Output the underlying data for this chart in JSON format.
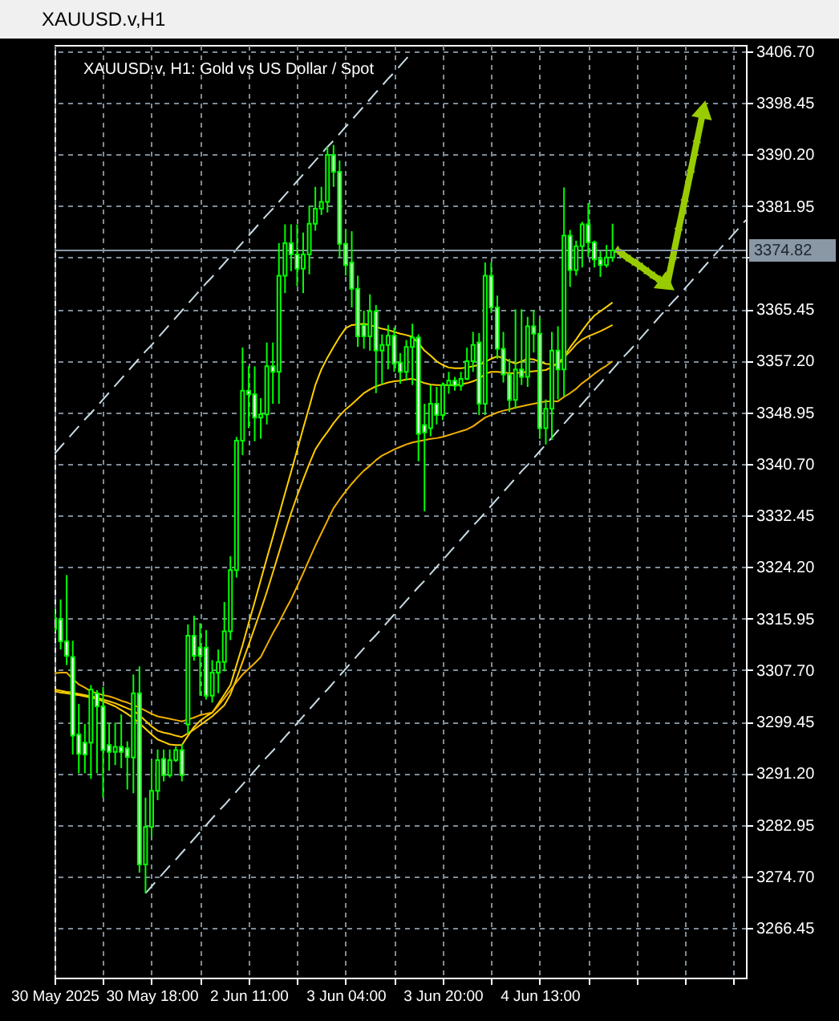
{
  "chart_data": {
    "type": "candlestick",
    "title": "XAUUSD.v,H1",
    "subtitle": "XAUUSD.v, H1: Gold vs US Dollar / Spot",
    "categories": [
      "30 May 2025",
      null,
      null,
      null,
      null,
      null,
      null,
      null,
      null,
      null,
      null,
      null,
      null,
      null,
      null,
      null,
      "30 May 18:00",
      null,
      null,
      null,
      null,
      null,
      null,
      null,
      null,
      null,
      null,
      null,
      null,
      null,
      null,
      null,
      "2 Jun 11:00",
      null,
      null,
      null,
      null,
      null,
      null,
      null,
      null,
      null,
      null,
      null,
      null,
      null,
      null,
      null,
      "3 Jun 04:00",
      null,
      null,
      null,
      null,
      null,
      null,
      null,
      null,
      null,
      null,
      null,
      null,
      null,
      null,
      null,
      "3 Jun 20:00",
      null,
      null,
      null,
      null,
      null,
      null,
      null,
      null,
      null,
      null,
      null,
      null,
      null,
      null,
      null,
      "4 Jun 13:00",
      null,
      null,
      null,
      null,
      null,
      null,
      null,
      null,
      null,
      null,
      null,
      null,
      null,
      null,
      null,
      null,
      null,
      null,
      null,
      null,
      null,
      null,
      null,
      null,
      null,
      null,
      null,
      null,
      null,
      null,
      null,
      null,
      null,
      null
    ],
    "ohlc": [
      [
        3316.0,
        3317.5,
        3313.8,
        3314.3
      ],
      [
        3315.8,
        3319.0,
        3311.0,
        3312.3
      ],
      [
        3312.3,
        3322.9,
        3308.5,
        3310.0
      ],
      [
        3309.8,
        3312.4,
        3294.2,
        3297.2
      ],
      [
        3297.4,
        3302.3,
        3291.2,
        3294.3
      ],
      [
        3296.1,
        3299.1,
        3291.2,
        3294.2
      ],
      [
        3296.1,
        3305.3,
        3290.3,
        3304.6
      ],
      [
        3304.0,
        3304.5,
        3291.2,
        3301.9
      ],
      [
        3301.9,
        3305.0,
        3287.3,
        3294.9
      ],
      [
        3295.7,
        3299.3,
        3291.6,
        3294.6
      ],
      [
        3294.6,
        3299.3,
        3292.5,
        3295.4
      ],
      [
        3295.4,
        3300.6,
        3292.0,
        3294.6
      ],
      [
        3295.2,
        3296.3,
        3288.6,
        3293.8
      ],
      [
        3293.7,
        3307.0,
        3288.0,
        3304.0
      ],
      [
        3304.0,
        3308.3,
        3275.3,
        3276.6
      ],
      [
        3276.6,
        3287.3,
        3272.0,
        3282.6
      ],
      [
        3282.6,
        3293.3,
        3281.0,
        3288.4
      ],
      [
        3288.4,
        3295.0,
        3286.9,
        3293.3
      ],
      [
        3293.5,
        3295.0,
        3289.9,
        3290.9
      ],
      [
        3290.9,
        3295.0,
        3290.5,
        3293.3
      ],
      [
        3293.3,
        3295.5,
        3293.0,
        3294.9
      ],
      [
        3294.9,
        3295.9,
        3289.9,
        3290.9
      ],
      [
        3299.0,
        3315.0,
        3297.5,
        3313.2
      ],
      [
        3313.2,
        3316.4,
        3309.2,
        3310.0
      ],
      [
        3311.3,
        3315.2,
        3303.6,
        3310.0
      ],
      [
        3311.3,
        3314.1,
        3303.0,
        3303.6
      ],
      [
        3303.6,
        3309.3,
        3302.5,
        3307.3
      ],
      [
        3307.3,
        3311.0,
        3304.0,
        3309.0
      ],
      [
        3309.0,
        3318.6,
        3307.5,
        3313.9
      ],
      [
        3313.9,
        3325.9,
        3312.5,
        3323.7
      ],
      [
        3323.7,
        3345.0,
        3322.5,
        3344.4
      ],
      [
        3344.4,
        3359.3,
        3342.1,
        3352.4
      ],
      [
        3352.4,
        3356.3,
        3346.4,
        3351.8
      ],
      [
        3351.8,
        3356.3,
        3344.3,
        3348.1
      ],
      [
        3348.1,
        3351.2,
        3344.7,
        3348.6
      ],
      [
        3348.6,
        3360.1,
        3347.0,
        3356.3
      ],
      [
        3356.3,
        3360.1,
        3350.3,
        3355.4
      ],
      [
        3355.4,
        3376.0,
        3350.3,
        3370.8
      ],
      [
        3370.8,
        3379.0,
        3368.0,
        3376.0
      ],
      [
        3376.0,
        3379.0,
        3371.5,
        3374.2
      ],
      [
        3374.2,
        3379.0,
        3369.1,
        3371.9
      ],
      [
        3371.9,
        3377.7,
        3368.0,
        3374.2
      ],
      [
        3374.2,
        3382.0,
        3371.0,
        3379.1
      ],
      [
        3379.1,
        3385.0,
        3378.0,
        3381.5
      ],
      [
        3381.5,
        3385.0,
        3380.5,
        3382.6
      ],
      [
        3382.6,
        3391.4,
        3380.9,
        3390.1
      ],
      [
        3390.1,
        3391.7,
        3385.0,
        3387.4
      ],
      [
        3387.4,
        3389.2,
        3373.8,
        3375.9
      ],
      [
        3375.9,
        3378.1,
        3370.8,
        3372.5
      ],
      [
        3372.9,
        3377.9,
        3365.7,
        3368.7
      ],
      [
        3368.7,
        3370.8,
        3359.4,
        3361.1
      ],
      [
        3362.9,
        3365.2,
        3359.1,
        3361.1
      ],
      [
        3361.1,
        3367.8,
        3358.8,
        3365.1
      ],
      [
        3365.1,
        3366.1,
        3352.0,
        3358.8
      ],
      [
        3358.8,
        3361.4,
        3353.4,
        3359.7
      ],
      [
        3359.7,
        3362.9,
        3355.8,
        3361.2
      ],
      [
        3361.2,
        3362.5,
        3355.4,
        3356.7
      ],
      [
        3356.9,
        3358.4,
        3353.5,
        3355.4
      ],
      [
        3355.4,
        3360.5,
        3354.0,
        3359.4
      ],
      [
        3359.4,
        3363.1,
        3353.3,
        3360.9
      ],
      [
        3360.9,
        3361.4,
        3341.1,
        3345.5
      ],
      [
        3346.9,
        3350.3,
        3333.1,
        3345.7
      ],
      [
        3346.4,
        3353.3,
        3345.1,
        3350.3
      ],
      [
        3350.3,
        3353.0,
        3347.0,
        3348.5
      ],
      [
        3348.5,
        3353.7,
        3347.7,
        3353.3
      ],
      [
        3353.3,
        3355.4,
        3351.9,
        3354.0
      ],
      [
        3354.0,
        3354.6,
        3352.4,
        3353.2
      ],
      [
        3353.2,
        3355.4,
        3352.4,
        3354.3
      ],
      [
        3354.3,
        3359.3,
        3354.1,
        3357.1
      ],
      [
        3357.1,
        3361.8,
        3355.4,
        3359.7
      ],
      [
        3360.1,
        3361.6,
        3348.5,
        3350.3
      ],
      [
        3350.3,
        3372.9,
        3348.5,
        3370.8
      ],
      [
        3370.8,
        3372.9,
        3364.8,
        3365.7
      ],
      [
        3365.7,
        3367.6,
        3357.5,
        3359.1
      ],
      [
        3359.1,
        3361.8,
        3353.7,
        3355.0
      ],
      [
        3355.0,
        3357.5,
        3349.0,
        3350.9
      ],
      [
        3350.9,
        3365.4,
        3349.5,
        3355.8
      ],
      [
        3355.8,
        3365.4,
        3353.3,
        3354.6
      ],
      [
        3354.6,
        3364.2,
        3353.0,
        3362.7
      ],
      [
        3362.7,
        3365.3,
        3358.5,
        3361.5
      ],
      [
        3361.5,
        3364.0,
        3344.7,
        3346.4
      ],
      [
        3346.4,
        3351.0,
        3343.8,
        3349.5
      ],
      [
        3349.5,
        3361.8,
        3344.5,
        3358.8
      ],
      [
        3358.8,
        3362.7,
        3351.0,
        3355.8
      ],
      [
        3355.8,
        3384.9,
        3351.5,
        3377.2
      ],
      [
        3377.2,
        3378.1,
        3369.0,
        3371.7
      ],
      [
        3371.7,
        3376.4,
        3370.8,
        3375.5
      ],
      [
        3375.5,
        3379.4,
        3372.1,
        3379.0
      ],
      [
        3379.0,
        3382.4,
        3373.8,
        3376.1
      ],
      [
        3376.1,
        3376.4,
        3372.1,
        3373.4
      ],
      [
        3373.4,
        3374.7,
        3370.6,
        3372.5
      ],
      [
        3372.5,
        3375.7,
        3372.1,
        3373.7
      ],
      [
        3373.7,
        3379.1,
        3373.0,
        3374.82
      ],
      null,
      null,
      null,
      null,
      null,
      null,
      null,
      null,
      null,
      null,
      null,
      null,
      null,
      null,
      null,
      null,
      null,
      null,
      null,
      null,
      null,
      null
    ],
    "color": "#00ff00",
    "colors": [
      "#ffffff",
      "#ffffff",
      "#ffffff",
      "#ffffff",
      "#ffffff",
      "#ffffff",
      "#000000",
      "#ffffff",
      "#ffffff",
      "#ffffff",
      "#000000",
      "#ffffff",
      "#ffffff",
      "#000000",
      "#ffffff",
      "#000000",
      "#000000",
      "#000000",
      "#ffffff",
      "#000000",
      "#000000",
      "#ffffff",
      "#000000",
      "#ffffff",
      "#ffffff",
      "#ffffff",
      "#000000",
      "#000000",
      "#000000",
      "#000000",
      "#000000",
      "#000000",
      "#ffffff",
      "#ffffff",
      "#000000",
      "#000000",
      "#ffffff",
      "#000000",
      "#000000",
      "#ffffff",
      "#ffffff",
      "#000000",
      "#000000",
      "#000000",
      "#000000",
      "#000000",
      "#ffffff",
      "#ffffff",
      "#ffffff",
      "#ffffff",
      "#ffffff",
      "#ffffff",
      "#000000",
      "#ffffff",
      "#000000",
      "#000000",
      "#ffffff",
      "#ffffff",
      "#000000",
      "#000000",
      "#ffffff",
      "#ffffff",
      "#000000",
      "#ffffff",
      "#000000",
      "#000000",
      "#ffffff",
      "#000000",
      "#000000",
      "#000000",
      "#ffffff",
      "#000000",
      "#ffffff",
      "#ffffff",
      "#ffffff",
      "#ffffff",
      "#000000",
      "#ffffff",
      "#000000",
      "#ffffff",
      "#ffffff",
      "#000000",
      "#000000",
      "#ffffff",
      "#000000",
      "#ffffff",
      "#000000",
      "#000000",
      "#ffffff",
      "#ffffff",
      "#ffffff",
      "#000000",
      "#000000",
      null,
      null,
      null,
      null,
      null,
      null,
      null,
      null,
      null,
      null,
      null,
      null,
      null,
      null,
      null,
      null,
      null,
      null,
      null,
      null,
      null,
      null
    ],
    "series": [
      {
        "type": "line",
        "color": "#ffd200",
        "values": [
          3304.3,
          3304.1,
          3304.0,
          3303.8,
          3303.7,
          3303.5,
          3303.3,
          3303.1,
          3302.7,
          3302.3,
          3301.9,
          3301.3,
          3300.7,
          3300.0,
          3299.2,
          3298.3,
          3297.4,
          3296.6,
          3296.2,
          3295.8,
          3295.7,
          3295.7,
          3297.2,
          3298.6,
          3299.6,
          3300.3,
          3300.9,
          3302.3,
          3303.8,
          3305.3,
          3308.5,
          3311.7,
          3315.2,
          3318.6,
          3322.1,
          3325.6,
          3329.0,
          3332.5,
          3336.0,
          3339.4,
          3342.9,
          3346.4,
          3349.8,
          3353.3,
          3355.8,
          3357.7,
          3359.4,
          3361.0,
          3362.4,
          3362.9,
          3363.0,
          3363.1,
          3362.9,
          3362.6,
          3362.3,
          3362.1,
          3361.8,
          3361.5,
          3361.3,
          3361.0,
          3360.0,
          3358.8,
          3358.0,
          3357.1,
          3356.5,
          3356.1,
          3356.0,
          3356.0,
          3356.1,
          3356.3,
          3356.5,
          3357.0,
          3357.5,
          3357.9,
          3357.6,
          3357.1,
          3356.7,
          3357.1,
          3357.5,
          3357.4,
          3357.0,
          3356.7,
          3356.6,
          3356.5,
          3357.9,
          3359.3,
          3360.6,
          3362.0,
          3363.3,
          3364.4,
          3365.1,
          3365.8,
          3366.5,
          null,
          null,
          null,
          null,
          null,
          null,
          null,
          null,
          null,
          null,
          null,
          null,
          null,
          null,
          null,
          null,
          null,
          null,
          null,
          null,
          null,
          null
        ]
      },
      {
        "type": "line",
        "color": "#ffc800",
        "values": [
          3304.6,
          3304.4,
          3304.2,
          3304.1,
          3303.9,
          3303.7,
          3303.5,
          3303.3,
          3303.0,
          3302.7,
          3302.4,
          3302.0,
          3301.6,
          3301.2,
          3300.5,
          3299.6,
          3298.7,
          3298.0,
          3297.7,
          3297.5,
          3297.2,
          3297.0,
          3297.6,
          3298.2,
          3298.9,
          3299.6,
          3300.3,
          3301.2,
          3302.1,
          3303.8,
          3306.3,
          3309.0,
          3311.7,
          3314.5,
          3317.3,
          3320.2,
          3323.3,
          3326.5,
          3329.7,
          3332.8,
          3335.6,
          3338.2,
          3340.7,
          3343.0,
          3344.5,
          3345.8,
          3347.2,
          3348.4,
          3349.4,
          3350.2,
          3351.1,
          3352.0,
          3352.6,
          3353.1,
          3353.4,
          3353.7,
          3353.9,
          3354.0,
          3354.2,
          3354.3,
          3354.0,
          3353.6,
          3353.4,
          3353.3,
          3353.3,
          3353.3,
          3353.3,
          3353.4,
          3353.6,
          3353.9,
          3354.3,
          3355.1,
          3355.4,
          3355.4,
          3355.3,
          3355.2,
          3355.2,
          3355.3,
          3355.4,
          3355.5,
          3355.6,
          3355.7,
          3356.2,
          3356.8,
          3357.7,
          3358.7,
          3359.8,
          3360.6,
          3361.1,
          3361.5,
          3361.9,
          3362.4,
          3362.9,
          null,
          null,
          null,
          null,
          null,
          null,
          null,
          null,
          null,
          null,
          null,
          null,
          null,
          null,
          null,
          null,
          null,
          null,
          null,
          null,
          null,
          null
        ]
      },
      {
        "type": "line",
        "color": "#f0b000",
        "values": [
          3307.2,
          3307.3,
          3307.3,
          3306.3,
          3305.4,
          3304.9,
          3304.3,
          3304.0,
          3303.7,
          3303.5,
          3303.2,
          3302.8,
          3302.5,
          3302.1,
          3301.7,
          3301.2,
          3300.7,
          3300.3,
          3300.1,
          3299.9,
          3299.7,
          3299.5,
          3299.8,
          3300.1,
          3300.5,
          3300.7,
          3300.9,
          3302.0,
          3303.2,
          3304.5,
          3305.8,
          3307.0,
          3307.9,
          3308.8,
          3309.8,
          3311.7,
          3313.6,
          3315.3,
          3317.2,
          3319.0,
          3321.1,
          3323.2,
          3325.4,
          3327.6,
          3329.6,
          3331.6,
          3333.6,
          3335.0,
          3336.3,
          3337.5,
          3338.6,
          3339.6,
          3340.4,
          3341.3,
          3342.0,
          3342.5,
          3343.0,
          3343.4,
          3343.8,
          3344.1,
          3344.3,
          3344.5,
          3344.7,
          3344.8,
          3345.0,
          3345.3,
          3345.6,
          3345.9,
          3346.2,
          3346.7,
          3347.4,
          3348.1,
          3348.5,
          3348.9,
          3349.2,
          3349.4,
          3349.7,
          3349.9,
          3350.1,
          3350.3,
          3350.5,
          3350.7,
          3350.7,
          3350.7,
          3351.4,
          3352.0,
          3352.7,
          3353.6,
          3354.3,
          3355.1,
          3355.8,
          3356.4,
          3357.1,
          null,
          null,
          null,
          null,
          null,
          null,
          null,
          null,
          null,
          null,
          null,
          null,
          null,
          null,
          null,
          null,
          null,
          null,
          null,
          null,
          null,
          null
        ]
      },
      {
        "type": "line",
        "color": "#c8dce6",
        "line_style": "dashed",
        "values": [
          3342.3,
          3343.4,
          3344.5,
          3345.6,
          3346.7,
          3347.8,
          3348.8,
          3349.9,
          3351.0,
          3352.1,
          3353.2,
          3354.3,
          3355.4,
          3356.5,
          3357.6,
          3358.7,
          3359.7,
          3360.8,
          3361.9,
          3363.0,
          3364.1,
          3365.2,
          3366.3,
          3367.4,
          3368.5,
          3369.6,
          3370.6,
          3371.7,
          3372.8,
          3373.9,
          3375.0,
          3376.1,
          3377.2,
          3378.3,
          3379.4,
          3380.5,
          3381.5,
          3382.6,
          3383.7,
          3384.8,
          3385.9,
          3387.0,
          3388.1,
          3389.2,
          3390.3,
          3391.4,
          3392.4,
          3393.5,
          3394.6,
          3395.7,
          3396.8,
          3397.9,
          3399.0,
          3400.1,
          3401.2,
          3402.3,
          3403.3,
          3404.4,
          3405.5,
          3406.6,
          null,
          null,
          null,
          null,
          null,
          null,
          null,
          null,
          null,
          null,
          null,
          null,
          null,
          null,
          null,
          null,
          null,
          null,
          null,
          null,
          null,
          null,
          null,
          null,
          null,
          null,
          null,
          null,
          null,
          null,
          null,
          null,
          null,
          null,
          null,
          null,
          null,
          null,
          null,
          null,
          null,
          null,
          null,
          null,
          null,
          null,
          null,
          null,
          null,
          null,
          null,
          null,
          null,
          null,
          null
        ]
      },
      {
        "type": "line",
        "color": "#c8dce6",
        "line_style": "dashed",
        "values": [
          null,
          null,
          null,
          null,
          null,
          null,
          null,
          null,
          null,
          null,
          null,
          null,
          null,
          null,
          null,
          3272.0,
          3273.1,
          3274.2,
          3275.3,
          3276.4,
          3277.4,
          3278.5,
          3279.6,
          3280.7,
          3281.8,
          3282.9,
          3284.0,
          3285.1,
          3286.1,
          3287.2,
          3288.3,
          3289.4,
          3290.5,
          3291.6,
          3292.7,
          3293.8,
          3294.8,
          3295.9,
          3297.0,
          3298.1,
          3299.2,
          3300.3,
          3301.4,
          3302.5,
          3303.6,
          3304.6,
          3305.7,
          3306.8,
          3307.9,
          3309.0,
          3310.1,
          3311.2,
          3312.3,
          3313.3,
          3314.4,
          3315.5,
          3316.6,
          3317.7,
          3318.8,
          3319.9,
          3321.0,
          3322.0,
          3323.1,
          3324.2,
          3325.3,
          3326.4,
          3327.5,
          3328.6,
          3329.7,
          3330.8,
          3331.8,
          3332.9,
          3334.0,
          3335.1,
          3336.2,
          3337.3,
          3338.4,
          3339.5,
          3340.5,
          3341.6,
          3342.7,
          3343.8,
          3344.9,
          3346.0,
          3347.1,
          3348.2,
          3349.2,
          3350.3,
          3351.4,
          3352.5,
          3353.6,
          3354.7,
          3355.8,
          3356.9,
          3358.0,
          3359.0,
          3360.1,
          3361.2,
          3362.3,
          3363.4,
          3364.5,
          3365.6,
          3366.7,
          3367.7,
          3368.8,
          3369.9,
          3371.0,
          3372.1,
          3373.2,
          3374.3,
          3375.4,
          3376.4,
          3377.5,
          3378.6,
          3379.7
        ]
      },
      {
        "type": "line",
        "color": "#99cc00",
        "marker": "triangle",
        "values": [
          null,
          null,
          null,
          null,
          null,
          null,
          null,
          null,
          null,
          null,
          null,
          null,
          null,
          null,
          null,
          null,
          null,
          null,
          null,
          null,
          null,
          null,
          null,
          null,
          null,
          null,
          null,
          null,
          null,
          null,
          null,
          null,
          null,
          null,
          null,
          null,
          null,
          null,
          null,
          null,
          null,
          null,
          null,
          null,
          null,
          null,
          null,
          null,
          null,
          null,
          null,
          null,
          null,
          null,
          null,
          null,
          null,
          null,
          null,
          null,
          null,
          null,
          null,
          null,
          null,
          null,
          null,
          null,
          null,
          null,
          null,
          null,
          null,
          null,
          null,
          null,
          null,
          null,
          null,
          null,
          null,
          null,
          null,
          null,
          null,
          null,
          null,
          null,
          null,
          null,
          null,
          null,
          null,
          3374.7,
          3374.0,
          3373.3,
          3372.7,
          3372.0,
          3371.3,
          3370.6,
          3370.0,
          3369.3,
          null,
          null,
          null,
          null,
          null,
          null,
          null,
          null,
          null,
          null,
          null,
          null,
          null
        ]
      },
      {
        "type": "line",
        "color": "#99cc00",
        "marker": "triangle",
        "values": [
          null,
          null,
          null,
          null,
          null,
          null,
          null,
          null,
          null,
          null,
          null,
          null,
          null,
          null,
          null,
          null,
          null,
          null,
          null,
          null,
          null,
          null,
          null,
          null,
          null,
          null,
          null,
          null,
          null,
          null,
          null,
          null,
          null,
          null,
          null,
          null,
          null,
          null,
          null,
          null,
          null,
          null,
          null,
          null,
          null,
          null,
          null,
          null,
          null,
          null,
          null,
          null,
          null,
          null,
          null,
          null,
          null,
          null,
          null,
          null,
          null,
          null,
          null,
          null,
          null,
          null,
          null,
          null,
          null,
          null,
          null,
          null,
          null,
          null,
          null,
          null,
          null,
          null,
          null,
          null,
          null,
          null,
          null,
          null,
          null,
          null,
          null,
          null,
          null,
          null,
          null,
          null,
          null,
          null,
          null,
          null,
          null,
          null,
          null,
          null,
          null,
          3369.3,
          3374.0,
          3378.7,
          3383.3,
          3388.0,
          3392.7,
          3397.4,
          null,
          null,
          null,
          null,
          null,
          null,
          null
        ]
      }
    ],
    "ylim": [
      3258.5,
      3407.7
    ],
    "yticks": [
      {
        "value": 3406.7,
        "label": "3406.70"
      },
      {
        "value": 3398.45,
        "label": "3398.45"
      },
      {
        "value": 3390.2,
        "label": "3390.20"
      },
      {
        "value": 3381.95,
        "label": "3381.95"
      },
      {
        "value": 3373.7,
        "label": null
      },
      {
        "value": 3365.45,
        "label": "3365.45"
      },
      {
        "value": 3357.2,
        "label": "3357.20"
      },
      {
        "value": 3348.95,
        "label": "3348.95"
      },
      {
        "value": 3340.7,
        "label": "3340.70"
      },
      {
        "value": 3332.45,
        "label": "3332.45"
      },
      {
        "value": 3324.2,
        "label": "3324.20"
      },
      {
        "value": 3315.95,
        "label": "3315.95"
      },
      {
        "value": 3307.7,
        "label": "3307.70"
      },
      {
        "value": 3299.45,
        "label": "3299.45"
      },
      {
        "value": 3291.2,
        "label": "3291.20"
      },
      {
        "value": 3282.95,
        "label": "3282.95"
      },
      {
        "value": 3274.7,
        "label": "3274.70"
      },
      {
        "value": 3266.45,
        "label": "3266.45"
      }
    ],
    "ref_lines": [
      {
        "axis": "y",
        "value": 3374.82,
        "label": "3374.82",
        "color": "#8a97a5"
      }
    ],
    "grid": true
  }
}
